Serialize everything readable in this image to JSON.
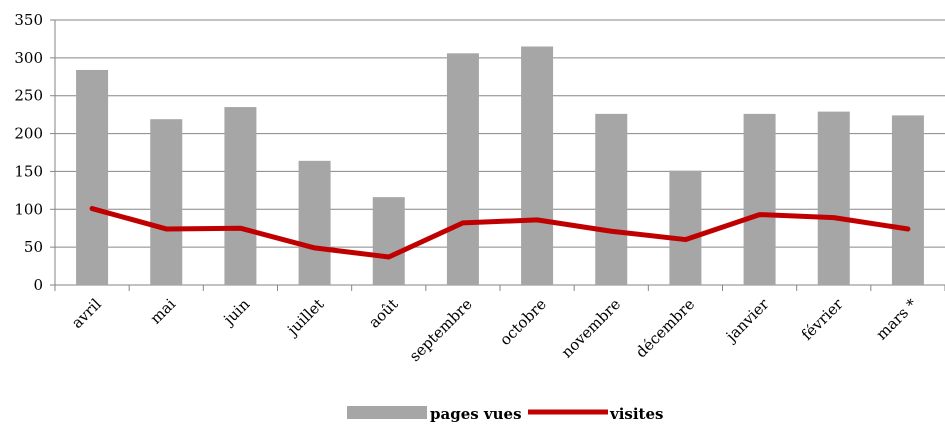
{
  "chart_data": {
    "type": "bar",
    "categories": [
      "avril",
      "mai",
      "juin",
      "juillet",
      "août",
      "septembre",
      "octobre",
      "novembre",
      "décembre",
      "janvier",
      "février",
      "mars *"
    ],
    "series": [
      {
        "name": "pages vues",
        "type": "bar",
        "color": "#a6a6a6",
        "values": [
          284,
          219,
          235,
          164,
          116,
          306,
          315,
          226,
          151,
          226,
          229,
          224
        ]
      },
      {
        "name": "visites",
        "type": "line",
        "color": "#c00000",
        "values": [
          101,
          74,
          75,
          49,
          37,
          82,
          86,
          71,
          60,
          93,
          89,
          74
        ]
      }
    ],
    "ylim": [
      0,
      350
    ],
    "yticks": [
      0,
      50,
      100,
      150,
      200,
      250,
      300,
      350
    ],
    "grid": true,
    "legend": "bottom"
  }
}
